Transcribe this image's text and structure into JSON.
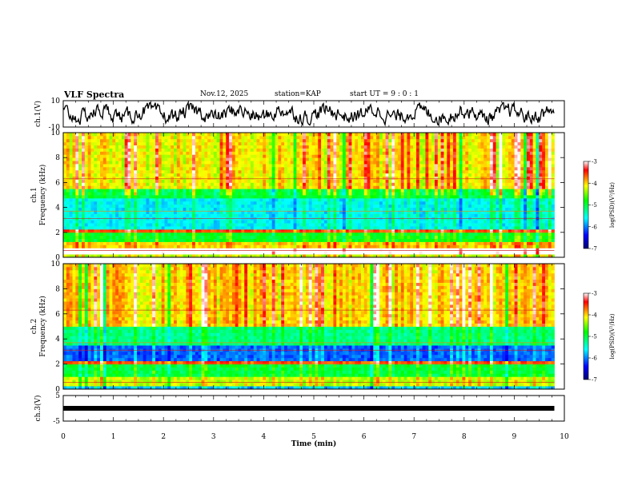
{
  "header": {
    "title": "VLF Spectra",
    "date": "Nov.12, 2025",
    "station": "station=KAP",
    "start_ut": "start UT =  9 : 0  : 1"
  },
  "colorbar": {
    "label": "log(PSD)(V²/Hz)",
    "ticks": [
      "-3",
      "-4",
      "-5",
      "-6",
      "-7"
    ],
    "range": [
      -7,
      -3
    ],
    "colors": [
      "#000070",
      "#0000ff",
      "#00ffff",
      "#00ff00",
      "#ffff00",
      "#ff0000",
      "#ffffff"
    ]
  },
  "chart_data": [
    {
      "type": "line",
      "panel": "ch.1(V)",
      "ylabel": "ch.1(V)",
      "ylim": [
        -10,
        10
      ],
      "yticks": [
        "10",
        "-10"
      ],
      "xlim": [
        0,
        10
      ],
      "description_series": "waveform amplitude, fluctuating roughly between -8 and 8 V"
    },
    {
      "type": "heatmap",
      "panel": "ch.1 spectrogram",
      "ylabel": "ch.1 Frequency (kHz)",
      "ylim": [
        0,
        10
      ],
      "yticks": [
        "0",
        "2",
        "4",
        "6",
        "8",
        "10"
      ],
      "xlim": [
        0,
        10
      ],
      "bands": [
        {
          "from": 0.0,
          "to": 0.3,
          "level": -4.3
        },
        {
          "from": 0.3,
          "to": 0.7,
          "level": -2.8
        },
        {
          "from": 0.7,
          "to": 1.2,
          "level": -4.0
        },
        {
          "from": 1.2,
          "to": 2.0,
          "level": -4.9
        },
        {
          "from": 2.0,
          "to": 2.3,
          "level": -3.6
        },
        {
          "from": 2.3,
          "to": 4.8,
          "level": -5.6
        },
        {
          "from": 4.8,
          "to": 5.5,
          "level": -5.0
        },
        {
          "from": 5.5,
          "to": 10.0,
          "level": -4.1
        }
      ]
    },
    {
      "type": "heatmap",
      "panel": "ch.2 spectrogram",
      "ylabel": "ch.2 Frequency (kHz)",
      "ylim": [
        0,
        10
      ],
      "yticks": [
        "0",
        "2",
        "4",
        "6",
        "8",
        "10"
      ],
      "xlim": [
        0,
        10
      ],
      "bands": [
        {
          "from": 0.0,
          "to": 0.3,
          "level": -5.8
        },
        {
          "from": 0.3,
          "to": 1.0,
          "level": -4.3
        },
        {
          "from": 1.0,
          "to": 2.0,
          "level": -5.0
        },
        {
          "from": 2.0,
          "to": 2.2,
          "level": -3.6
        },
        {
          "from": 2.2,
          "to": 3.6,
          "level": -6.1
        },
        {
          "from": 3.6,
          "to": 5.0,
          "level": -5.2
        },
        {
          "from": 5.0,
          "to": 10.0,
          "level": -4.0
        }
      ]
    },
    {
      "type": "line",
      "panel": "ch.3(V)",
      "ylabel": "ch.3(V)",
      "ylim": [
        -5,
        5
      ],
      "yticks": [
        "5",
        "-5"
      ],
      "xlim": [
        0,
        10
      ],
      "constant_value": 0,
      "end_time": 9.8
    }
  ],
  "xaxis": {
    "label": "Time  (min)",
    "ticks": [
      "0",
      "1",
      "2",
      "3",
      "4",
      "5",
      "6",
      "7",
      "8",
      "9",
      "10"
    ],
    "range": [
      0,
      10
    ]
  }
}
